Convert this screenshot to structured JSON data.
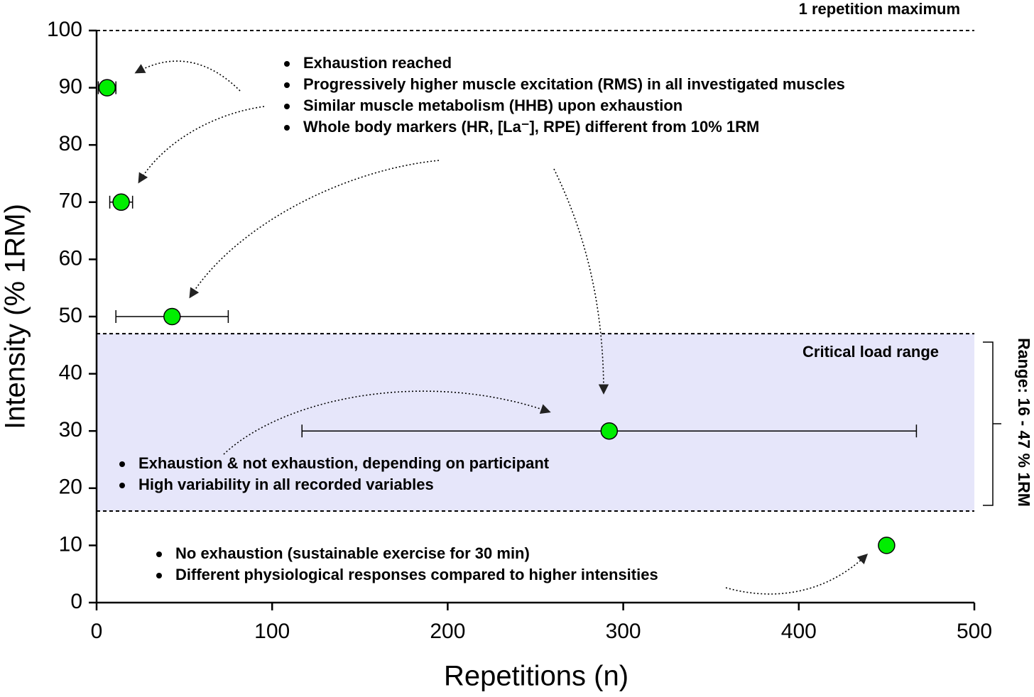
{
  "chart_data": {
    "type": "scatter",
    "x_label": "Repetitions (n)",
    "y_label": "Intensity (% 1RM)",
    "xlim": [
      0,
      500
    ],
    "xticks": [
      0,
      100,
      200,
      300,
      400,
      500
    ],
    "ylim": [
      0,
      100
    ],
    "yticks": [
      0,
      10,
      20,
      30,
      40,
      50,
      60,
      70,
      80,
      90,
      100
    ],
    "series": [
      {
        "color": "#00ee00",
        "x": [
          6,
          14,
          43,
          292,
          450
        ],
        "values": [
          90,
          70,
          50,
          30,
          10
        ],
        "x_errors": [
          5,
          6.5,
          32,
          175,
          null
        ]
      }
    ],
    "reference_lines": [
      {
        "value": 100,
        "label": "1 repetition maximum"
      }
    ],
    "band": {
      "from": 16,
      "to": 47,
      "label": "Critical load range",
      "color": "#e6e6fa"
    },
    "bracket_label": "Range: 16 - 47 % 1RM",
    "annotations": [
      {
        "bullets": [
          "Exhaustion reached",
          "Progressively higher muscle excitation (RMS) in all investigated muscles",
          "Similar muscle metabolism (HHB) upon exhaustion",
          "Whole body markers (HR, [La⁻], RPE) different from 10% 1RM"
        ]
      },
      {
        "bullets": [
          "Exhaustion & not exhaustion, depending on participant",
          "High variability in all recorded variables"
        ]
      },
      {
        "bullets": [
          "No exhaustion (sustainable exercise for 30 min)",
          "Different physiological responses compared to higher intensities"
        ]
      }
    ]
  }
}
